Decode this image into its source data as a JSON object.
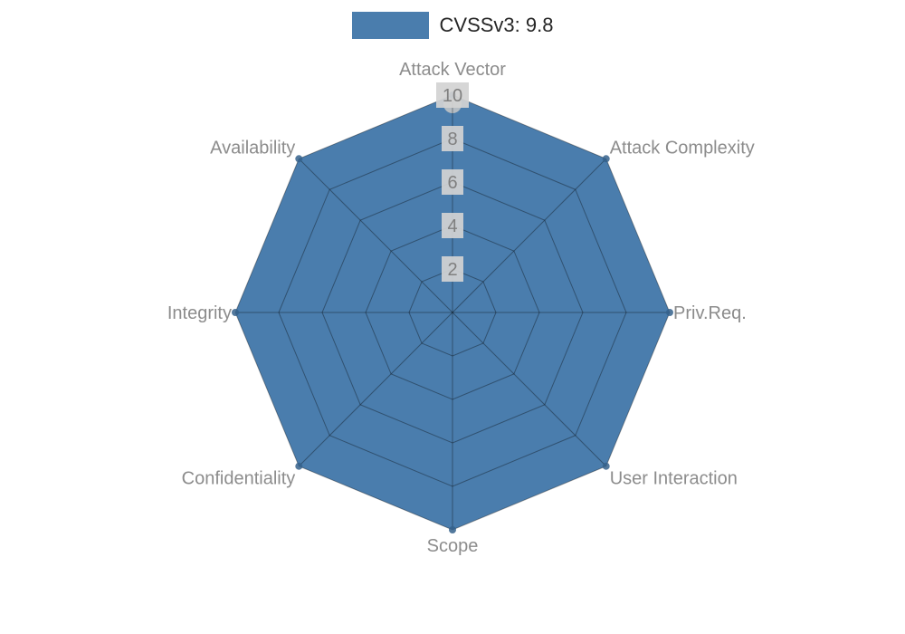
{
  "legend": {
    "label": "CVSSv3: 9.8"
  },
  "chart_data": {
    "type": "radar",
    "title": "",
    "categories": [
      "Attack Vector",
      "Attack Complexity",
      "Priv.Req.",
      "User Interaction",
      "Scope",
      "Confidentiality",
      "Integrity",
      "Availability"
    ],
    "series": [
      {
        "name": "CVSSv3: 9.8",
        "values": [
          10,
          10,
          10,
          10,
          10,
          10,
          10,
          10
        ]
      }
    ],
    "ticks": [
      2,
      4,
      6,
      8,
      10
    ],
    "rlim": [
      0,
      10
    ],
    "grid": true,
    "legend_position": "top-center",
    "colors": {
      "fill": "#4a7dad",
      "fill_edge": "#35628c",
      "grid_line": "rgba(0,0,0,0.35)",
      "axis_label": "#8c8c8c",
      "tick_text": "#7f7f7f",
      "tick_bg": "#d2d2d2",
      "legend_text": "#262626",
      "spine_marker": "#b4bcc3"
    }
  }
}
